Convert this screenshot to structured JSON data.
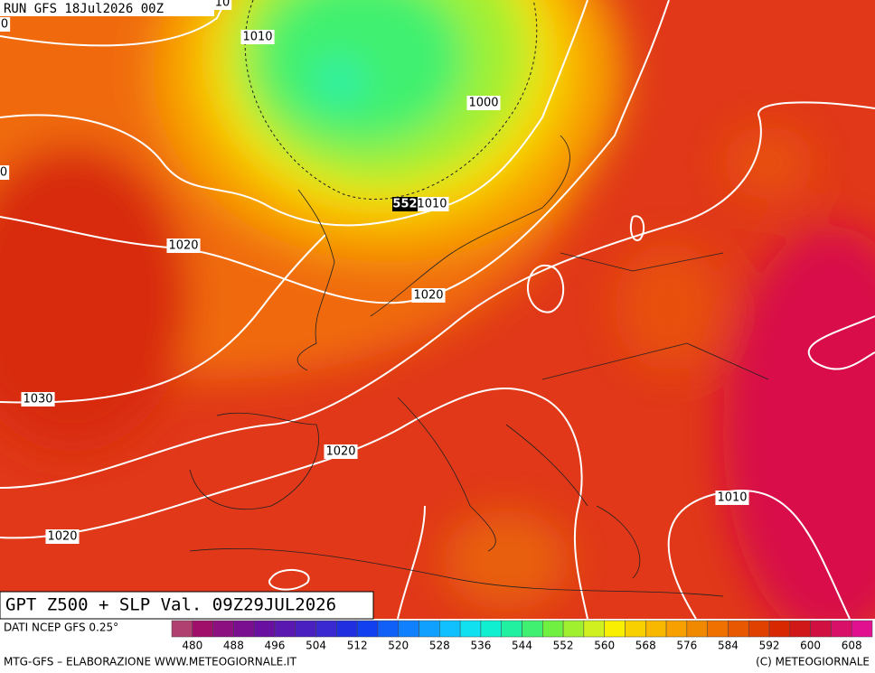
{
  "header": {
    "run": "RUN GFS 18Jul2026 00Z"
  },
  "map": {
    "title": "GPT Z500 + SLP Val. 09Z29JUL2026",
    "isobar_labels": [
      "10",
      "0",
      "1010",
      "1000",
      "0",
      "1010",
      "1020",
      "1020",
      "1030",
      "1020",
      "1010",
      "1020"
    ],
    "z500_label": "552"
  },
  "legend": {
    "source": "DATI NCEP GFS 0.25°",
    "ticks": [
      480,
      488,
      496,
      504,
      512,
      520,
      528,
      536,
      544,
      552,
      560,
      568,
      576,
      584,
      592,
      600,
      608
    ],
    "colors": [
      "#b04070",
      "#a0106a",
      "#8c1080",
      "#7a1090",
      "#6a10a0",
      "#5a18b0",
      "#4a20c0",
      "#3a28d0",
      "#2030e0",
      "#1040f0",
      "#1060f8",
      "#1080ff",
      "#10a0ff",
      "#10c0ff",
      "#10e0f0",
      "#10f0d0",
      "#20f0a0",
      "#40f070",
      "#70f040",
      "#a0f030",
      "#d0f020",
      "#f8f000",
      "#f8d000",
      "#f8b800",
      "#f8a000",
      "#f08800",
      "#f07000",
      "#e85800",
      "#e04000",
      "#d82800",
      "#d01818",
      "#d01040",
      "#d81068",
      "#e01090"
    ]
  },
  "footer": {
    "credit": "MTG-GFS – ELABORAZIONE WWW.METEOGIORNALE.IT",
    "copyright": "(C) METEOGIORNALE"
  }
}
